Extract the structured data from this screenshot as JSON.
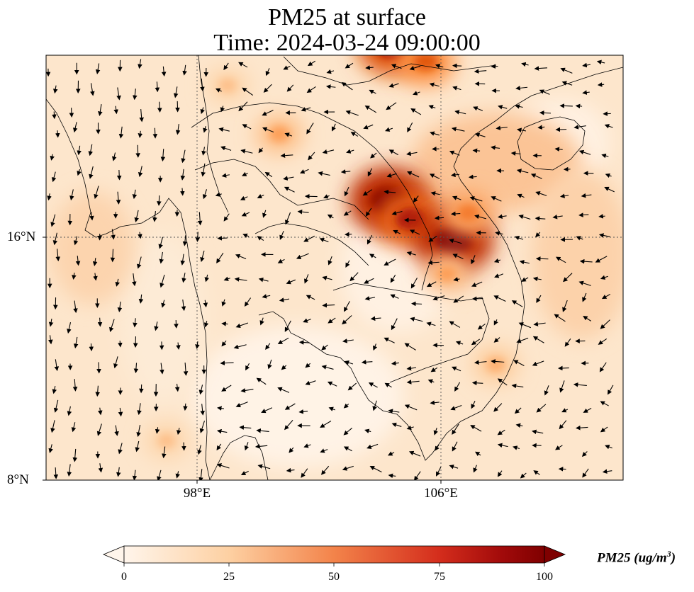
{
  "title": "PM25 at surface",
  "subtitle": "Time: 2024-03-24 09:00:00",
  "axes": {
    "lat_ticks": [
      "16°N",
      "8°N"
    ],
    "lon_ticks": [
      "98°E",
      "106°E"
    ]
  },
  "colorbar": {
    "label": "PM25 (ug/m",
    "label_sup": "3",
    "label_close": ")",
    "ticks": [
      "0",
      "25",
      "50",
      "75",
      "100"
    ],
    "min": 0,
    "max": 100,
    "colors": [
      "#fff5eb",
      "#fdd0a2",
      "#fd8d3c",
      "#d94801",
      "#a10a0a",
      "#7f0000"
    ]
  },
  "map": {
    "background": "#fde6cc",
    "hotspots": [
      {
        "lon": 104.4,
        "lat": 22.3,
        "value": 80
      },
      {
        "lon": 105.5,
        "lat": 21.8,
        "value": 55
      },
      {
        "lon": 100.7,
        "lat": 19.4,
        "value": 35
      },
      {
        "lon": 104.3,
        "lat": 17.2,
        "value": 100
      },
      {
        "lon": 105.0,
        "lat": 16.6,
        "value": 75
      },
      {
        "lon": 106.4,
        "lat": 15.9,
        "value": 100
      },
      {
        "lon": 106.9,
        "lat": 16.8,
        "value": 45
      },
      {
        "lon": 106.2,
        "lat": 14.8,
        "value": 35
      },
      {
        "lon": 107.8,
        "lat": 11.8,
        "value": 30
      },
      {
        "lon": 99.0,
        "lat": 21.0,
        "value": 25
      },
      {
        "lon": 97.0,
        "lat": 9.3,
        "value": 25
      }
    ]
  }
}
